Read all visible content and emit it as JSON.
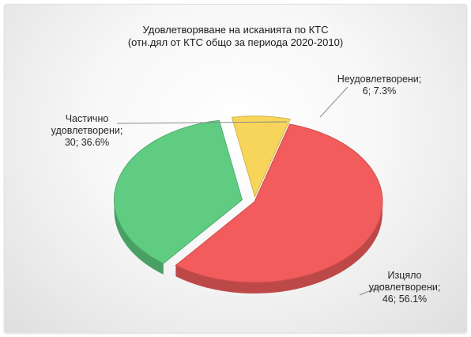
{
  "chart_data": {
    "type": "pie",
    "title": "Удовлетворяване на исканията по КТС",
    "subtitle": "(отн.дял от КТС общо за периода 2020-2010)",
    "slices": [
      {
        "name": "Изцяло удовлетворени",
        "value": 46,
        "percent": 56.1,
        "color": "#f25c5c",
        "label_lines": [
          "Изцяло",
          "удовлетворени;",
          "46; 56.1%"
        ]
      },
      {
        "name": "Частично удовлетворени",
        "value": 30,
        "percent": 36.6,
        "color": "#5fcc82",
        "label_lines": [
          "Частично",
          "удовлетворени;",
          "30; 36.6%"
        ]
      },
      {
        "name": "Неудовлетворени",
        "value": 6,
        "percent": 7.3,
        "color": "#f6d55a",
        "label_lines": [
          "Неудовлетворени;",
          "6; 7.3%"
        ]
      }
    ]
  }
}
